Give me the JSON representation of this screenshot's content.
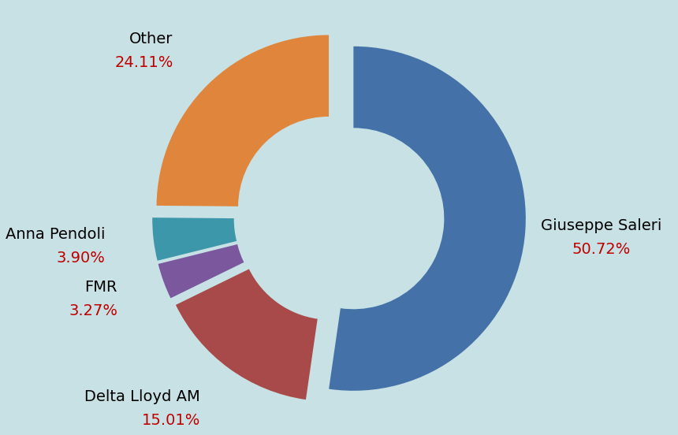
{
  "chart_data": {
    "type": "pie",
    "categories": [
      "Giuseppe Saleri",
      "Delta Lloyd AM",
      "FMR",
      "Anna Pendoli",
      "Other"
    ],
    "values": [
      50.72,
      15.01,
      3.27,
      3.9,
      24.11
    ],
    "value_labels": [
      "50.72%",
      "15.01%",
      "3.27%",
      "3.90%",
      "24.11%"
    ],
    "colors": [
      "#4472a8",
      "#a84a4a",
      "#7b579e",
      "#3d97ab",
      "#e0863c"
    ],
    "data_labels": true
  }
}
